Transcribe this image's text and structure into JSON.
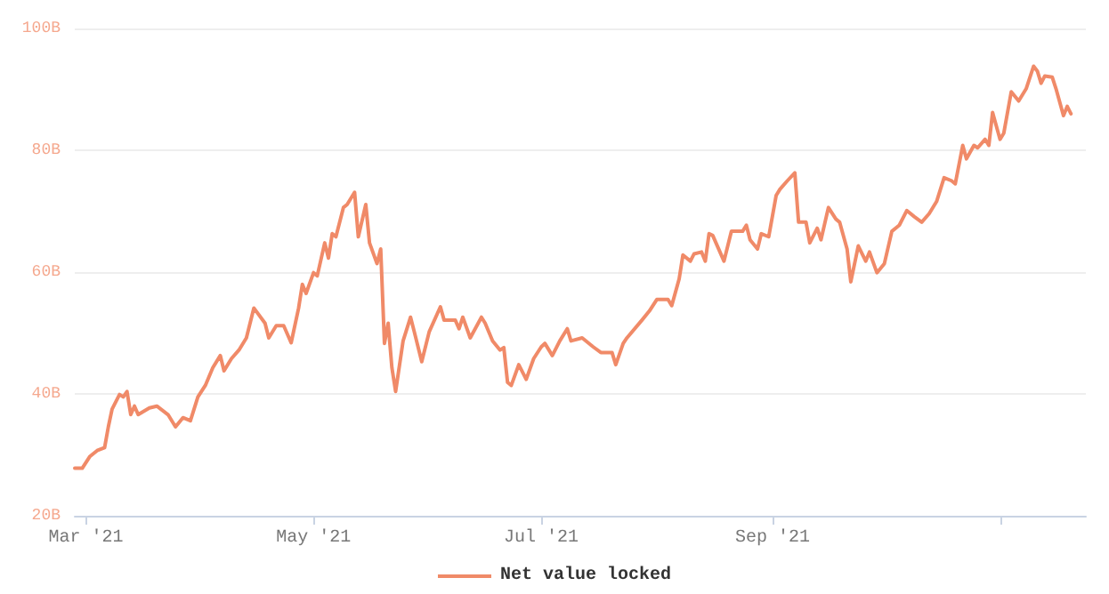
{
  "chart_data": {
    "type": "line",
    "x": [
      "2021-02-26",
      "2021-02-28",
      "2021-03-02",
      "2021-03-04",
      "2021-03-06",
      "2021-03-07",
      "2021-03-08",
      "2021-03-10",
      "2021-03-11",
      "2021-03-12",
      "2021-03-13",
      "2021-03-14",
      "2021-03-15",
      "2021-03-18",
      "2021-03-20",
      "2021-03-23",
      "2021-03-25",
      "2021-03-27",
      "2021-03-29",
      "2021-03-31",
      "2021-04-02",
      "2021-04-04",
      "2021-04-06",
      "2021-04-07",
      "2021-04-09",
      "2021-04-11",
      "2021-04-13",
      "2021-04-15",
      "2021-04-18",
      "2021-04-19",
      "2021-04-21",
      "2021-04-23",
      "2021-04-25",
      "2021-04-27",
      "2021-04-28",
      "2021-04-29",
      "2021-05-01",
      "2021-05-02",
      "2021-05-04",
      "2021-05-05",
      "2021-05-06",
      "2021-05-07",
      "2021-05-09",
      "2021-05-10",
      "2021-05-12",
      "2021-05-13",
      "2021-05-15",
      "2021-05-16",
      "2021-05-18",
      "2021-05-19",
      "2021-05-20",
      "2021-05-21",
      "2021-05-22",
      "2021-05-23",
      "2021-05-25",
      "2021-05-27",
      "2021-05-28",
      "2021-05-30",
      "2021-06-01",
      "2021-06-04",
      "2021-06-05",
      "2021-06-08",
      "2021-06-09",
      "2021-06-10",
      "2021-06-12",
      "2021-06-15",
      "2021-06-16",
      "2021-06-18",
      "2021-06-20",
      "2021-06-21",
      "2021-06-22",
      "2021-06-23",
      "2021-06-25",
      "2021-06-27",
      "2021-06-29",
      "2021-07-01",
      "2021-07-02",
      "2021-07-04",
      "2021-07-06",
      "2021-07-08",
      "2021-07-09",
      "2021-07-12",
      "2021-07-15",
      "2021-07-17",
      "2021-07-20",
      "2021-07-21",
      "2021-07-23",
      "2021-07-24",
      "2021-07-28",
      "2021-07-30",
      "2021-08-01",
      "2021-08-04",
      "2021-08-05",
      "2021-08-07",
      "2021-08-08",
      "2021-08-10",
      "2021-08-11",
      "2021-08-13",
      "2021-08-14",
      "2021-08-15",
      "2021-08-16",
      "2021-08-19",
      "2021-08-21",
      "2021-08-24",
      "2021-08-25",
      "2021-08-26",
      "2021-08-28",
      "2021-08-29",
      "2021-08-31",
      "2021-09-02",
      "2021-09-03",
      "2021-09-05",
      "2021-09-07",
      "2021-09-08",
      "2021-09-10",
      "2021-09-11",
      "2021-09-13",
      "2021-09-14",
      "2021-09-16",
      "2021-09-18",
      "2021-09-19",
      "2021-09-21",
      "2021-09-22",
      "2021-09-24",
      "2021-09-26",
      "2021-09-27",
      "2021-09-29",
      "2021-10-01",
      "2021-10-03",
      "2021-10-05",
      "2021-10-07",
      "2021-10-09",
      "2021-10-11",
      "2021-10-13",
      "2021-10-15",
      "2021-10-17",
      "2021-10-19",
      "2021-10-20",
      "2021-10-22",
      "2021-10-23",
      "2021-10-25",
      "2021-10-26",
      "2021-10-28",
      "2021-10-29",
      "2021-10-30",
      "2021-11-01",
      "2021-11-02",
      "2021-11-04",
      "2021-11-06",
      "2021-11-08",
      "2021-11-10",
      "2021-11-11",
      "2021-11-12",
      "2021-11-13",
      "2021-11-15",
      "2021-11-16",
      "2021-11-18",
      "2021-11-19",
      "2021-11-20"
    ],
    "series": [
      {
        "name": "Net value locked",
        "color": "#f08a68",
        "values": [
          27.8,
          27.8,
          29.7,
          30.7,
          31.2,
          34.6,
          37.5,
          39.9,
          39.5,
          40.4,
          36.6,
          38.0,
          36.6,
          37.7,
          38.0,
          36.6,
          34.6,
          36.1,
          35.6,
          39.5,
          41.4,
          44.3,
          46.3,
          43.8,
          45.8,
          47.2,
          49.2,
          54.1,
          51.6,
          49.2,
          51.2,
          51.2,
          48.4,
          54.1,
          58.0,
          56.5,
          59.9,
          59.4,
          64.8,
          62.3,
          66.3,
          65.8,
          70.6,
          71.1,
          73.1,
          65.8,
          71.1,
          64.8,
          61.4,
          63.8,
          48.3,
          51.6,
          44.3,
          40.4,
          48.7,
          52.6,
          50.2,
          45.3,
          50.2,
          54.3,
          52.1,
          52.1,
          50.7,
          52.6,
          49.2,
          52.6,
          51.6,
          48.7,
          47.2,
          47.6,
          41.9,
          41.4,
          44.8,
          42.4,
          45.8,
          47.7,
          48.3,
          46.3,
          48.7,
          50.7,
          48.7,
          49.2,
          47.7,
          46.8,
          46.8,
          44.8,
          48.3,
          49.2,
          52.1,
          53.6,
          55.5,
          55.5,
          54.5,
          58.9,
          62.8,
          61.8,
          63.0,
          63.3,
          61.8,
          66.3,
          66.0,
          61.8,
          66.7,
          66.7,
          67.7,
          65.3,
          63.8,
          66.3,
          65.8,
          72.6,
          73.6,
          75.0,
          76.3,
          68.2,
          68.2,
          64.8,
          67.2,
          65.3,
          70.6,
          68.7,
          68.2,
          63.8,
          58.4,
          64.3,
          61.8,
          63.3,
          59.9,
          61.4,
          66.7,
          67.7,
          70.1,
          69.1,
          68.2,
          69.6,
          71.6,
          75.5,
          75.0,
          74.5,
          80.8,
          78.6,
          80.8,
          80.4,
          81.8,
          80.8,
          86.2,
          81.8,
          82.8,
          89.6,
          88.1,
          90.1,
          93.8,
          93.0,
          91.0,
          92.2,
          92.0,
          90.1,
          85.7,
          87.2,
          86.0
        ]
      }
    ],
    "xlim": [
      "2021-02-26",
      "2021-11-24"
    ],
    "xticks": [
      {
        "value": "2021-03-01",
        "label": "Mar '21"
      },
      {
        "value": "2021-05-01",
        "label": "May '21"
      },
      {
        "value": "2021-07-01",
        "label": "Jul '21"
      },
      {
        "value": "2021-09-01",
        "label": "Sep '21"
      },
      {
        "value": "2021-11-01",
        "label": null
      }
    ],
    "ylim": [
      20,
      100
    ],
    "yticks": [
      {
        "value": 20,
        "label": "20B"
      },
      {
        "value": 40,
        "label": "40B"
      },
      {
        "value": 60,
        "label": "60B"
      },
      {
        "value": 80,
        "label": "80B"
      },
      {
        "value": 100,
        "label": "100B"
      }
    ],
    "grid": "y",
    "legend": "bottom",
    "marker": "none",
    "line_style": "solid"
  }
}
